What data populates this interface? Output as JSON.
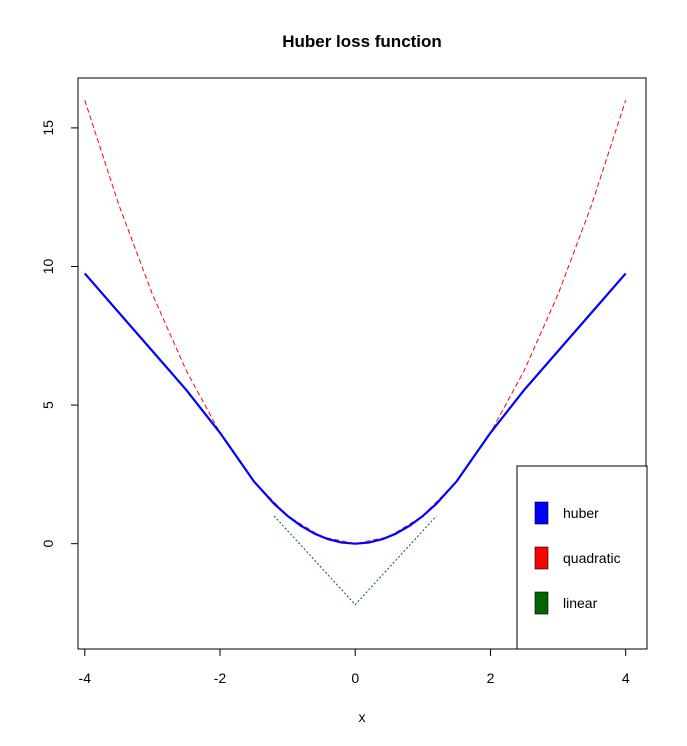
{
  "chart_data": {
    "type": "line",
    "title": "Huber loss function",
    "xlabel": "x",
    "ylabel": "",
    "xlim": [
      -4.1,
      4.3
    ],
    "ylim": [
      -3.8,
      16.8
    ],
    "xticks": [
      -4,
      -2,
      0,
      2,
      4
    ],
    "xtick_labels": [
      "-4",
      "-2",
      "0",
      "2",
      "4"
    ],
    "yticks": [
      0,
      5,
      10,
      15
    ],
    "ytick_labels": [
      "0",
      "5",
      "10",
      "15"
    ],
    "grid": false,
    "legend": {
      "placement": "bottom-right"
    },
    "series": [
      {
        "name": "huber",
        "color": "#0000ff",
        "style": "solid",
        "x": [
          -4,
          -3.5,
          -3,
          -2.5,
          -2,
          -1.5,
          -1.2,
          -1,
          -0.8,
          -0.6,
          -0.4,
          -0.2,
          0,
          0.2,
          0.4,
          0.6,
          0.8,
          1,
          1.2,
          1.5,
          2,
          2.5,
          3,
          3.5,
          4
        ],
        "y": [
          9.75,
          8.35,
          6.95,
          5.55,
          4.0,
          2.25,
          1.44,
          1.0,
          0.64,
          0.36,
          0.16,
          0.04,
          0.0,
          0.04,
          0.16,
          0.36,
          0.64,
          1.0,
          1.44,
          2.25,
          4.0,
          5.55,
          6.95,
          8.35,
          9.75
        ]
      },
      {
        "name": "quadratic",
        "color": "#ff0000",
        "style": "dashed",
        "x": [
          -4,
          -3.5,
          -3,
          -2.5,
          -2,
          -1.5,
          -1,
          -0.5,
          0,
          0.5,
          1,
          1.5,
          2,
          2.5,
          3,
          3.5,
          4
        ],
        "y": [
          16,
          12.25,
          9,
          6.25,
          4,
          2.25,
          1,
          0.25,
          0,
          0.25,
          1,
          2.25,
          4,
          6.25,
          9,
          12.25,
          16
        ]
      },
      {
        "name": "linear",
        "color": "#006400",
        "style": "dotted",
        "x": [
          -1.2,
          0,
          1.2
        ],
        "y": [
          1.0,
          -2.2,
          1.0
        ]
      }
    ]
  }
}
